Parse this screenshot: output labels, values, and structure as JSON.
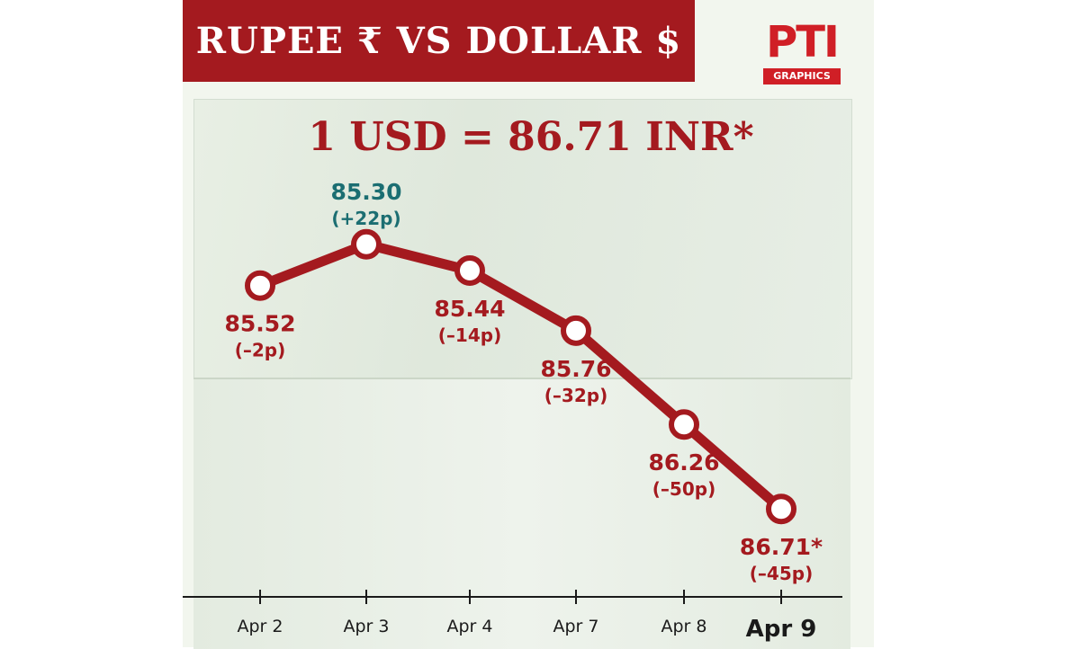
{
  "banner": {
    "title": "RUPEE ₹   VS   DOLLAR $"
  },
  "logo": {
    "mark": "PTI",
    "subtitle": "GRAPHICS"
  },
  "headline": "1 USD = 86.71 INR*",
  "colors": {
    "primary": "#a41a1f",
    "teal": "#1b6e72",
    "background": "#f2f6ee"
  },
  "chart_data": {
    "type": "line",
    "categories": [
      "Apr 2",
      "Apr 3",
      "Apr 4",
      "Apr 7",
      "Apr 8",
      "Apr 9"
    ],
    "values": [
      85.52,
      85.3,
      85.44,
      85.76,
      86.26,
      86.71
    ],
    "value_labels": [
      "85.52",
      "85.30",
      "85.44",
      "85.76",
      "86.26",
      "86.71*"
    ],
    "change_labels": [
      "(–2p)",
      "(+22p)",
      "(–14p)",
      "(–32p)",
      "(–50p)",
      "(–45p)"
    ],
    "highlight_index": 1,
    "emphasized_category_index": 5,
    "ylim": [
      85.1,
      86.8
    ],
    "grid": false,
    "y_axis": "hidden"
  }
}
